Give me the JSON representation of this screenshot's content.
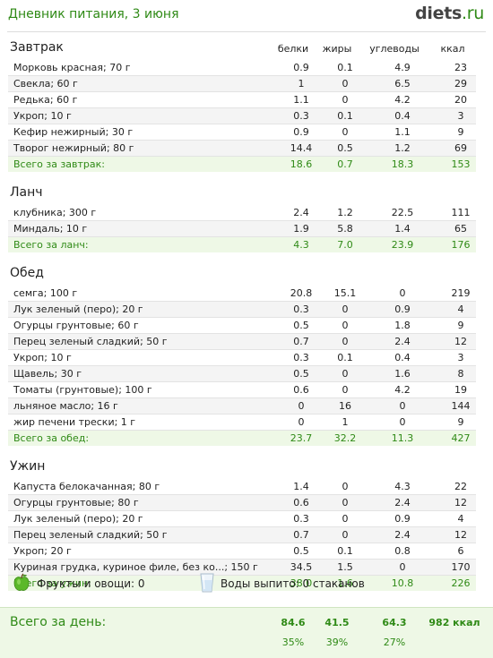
{
  "header": {
    "title": "Дневник питания, 3 июня",
    "logo_main": "diets",
    "logo_tld": ".ru"
  },
  "columns": {
    "protein": "белки",
    "fat": "жиры",
    "carbs": "углеводы",
    "kcal": "ккал"
  },
  "meals": [
    {
      "title": "Завтрак",
      "items": [
        {
          "name": "Морковь красная; 70 г",
          "protein": "0.9",
          "fat": "0.1",
          "carbs": "4.9",
          "kcal": "23"
        },
        {
          "name": "Свекла; 60 г",
          "protein": "1",
          "fat": "0",
          "carbs": "6.5",
          "kcal": "29"
        },
        {
          "name": "Редька; 60 г",
          "protein": "1.1",
          "fat": "0",
          "carbs": "4.2",
          "kcal": "20"
        },
        {
          "name": "Укроп; 10 г",
          "protein": "0.3",
          "fat": "0.1",
          "carbs": "0.4",
          "kcal": "3"
        },
        {
          "name": "Кефир нежирный; 30 г",
          "protein": "0.9",
          "fat": "0",
          "carbs": "1.1",
          "kcal": "9"
        },
        {
          "name": "Творог нежирный; 80 г",
          "protein": "14.4",
          "fat": "0.5",
          "carbs": "1.2",
          "kcal": "69"
        }
      ],
      "total": {
        "label": "Всего за завтрак:",
        "protein": "18.6",
        "fat": "0.7",
        "carbs": "18.3",
        "kcal": "153"
      }
    },
    {
      "title": "Ланч",
      "items": [
        {
          "name": "клубника; 300 г",
          "protein": "2.4",
          "fat": "1.2",
          "carbs": "22.5",
          "kcal": "111"
        },
        {
          "name": "Миндаль; 10 г",
          "protein": "1.9",
          "fat": "5.8",
          "carbs": "1.4",
          "kcal": "65"
        }
      ],
      "total": {
        "label": "Всего за ланч:",
        "protein": "4.3",
        "fat": "7.0",
        "carbs": "23.9",
        "kcal": "176"
      }
    },
    {
      "title": "Обед",
      "items": [
        {
          "name": "семга; 100 г",
          "protein": "20.8",
          "fat": "15.1",
          "carbs": "0",
          "kcal": "219"
        },
        {
          "name": "Лук зеленый (перо); 20 г",
          "protein": "0.3",
          "fat": "0",
          "carbs": "0.9",
          "kcal": "4"
        },
        {
          "name": "Огурцы грунтовые; 60 г",
          "protein": "0.5",
          "fat": "0",
          "carbs": "1.8",
          "kcal": "9"
        },
        {
          "name": "Перец зеленый сладкий; 50 г",
          "protein": "0.7",
          "fat": "0",
          "carbs": "2.4",
          "kcal": "12"
        },
        {
          "name": "Укроп; 10 г",
          "protein": "0.3",
          "fat": "0.1",
          "carbs": "0.4",
          "kcal": "3"
        },
        {
          "name": "Щавель; 30 г",
          "protein": "0.5",
          "fat": "0",
          "carbs": "1.6",
          "kcal": "8"
        },
        {
          "name": "Томаты (грунтовые); 100 г",
          "protein": "0.6",
          "fat": "0",
          "carbs": "4.2",
          "kcal": "19"
        },
        {
          "name": "льняное масло; 16 г",
          "protein": "0",
          "fat": "16",
          "carbs": "0",
          "kcal": "144"
        },
        {
          "name": "жир печени  трески; 1 г",
          "protein": "0",
          "fat": "1",
          "carbs": "0",
          "kcal": "9"
        }
      ],
      "total": {
        "label": "Всего за обед:",
        "protein": "23.7",
        "fat": "32.2",
        "carbs": "11.3",
        "kcal": "427"
      }
    },
    {
      "title": "Ужин",
      "items": [
        {
          "name": "Капуста белокачанная; 80 г",
          "protein": "1.4",
          "fat": "0",
          "carbs": "4.3",
          "kcal": "22"
        },
        {
          "name": "Огурцы грунтовые; 80 г",
          "protein": "0.6",
          "fat": "0",
          "carbs": "2.4",
          "kcal": "12"
        },
        {
          "name": "Лук зеленый (перо); 20 г",
          "protein": "0.3",
          "fat": "0",
          "carbs": "0.9",
          "kcal": "4"
        },
        {
          "name": "Перец зеленый сладкий; 50 г",
          "protein": "0.7",
          "fat": "0",
          "carbs": "2.4",
          "kcal": "12"
        },
        {
          "name": "Укроп; 20 г",
          "protein": "0.5",
          "fat": "0.1",
          "carbs": "0.8",
          "kcal": "6"
        },
        {
          "name": "Куриная грудка, куриное филе, без ко...; 150 г",
          "protein": "34.5",
          "fat": "1.5",
          "carbs": "0",
          "kcal": "170"
        }
      ],
      "total": {
        "label": "Всего за ужин:",
        "protein": "38.0",
        "fat": "1.6",
        "carbs": "10.8",
        "kcal": "226"
      }
    }
  ],
  "extras": {
    "fruit_icon": "apple-icon",
    "fruit_label": "Фрукты и овощи: 0",
    "water_icon": "water-glass-icon",
    "water_label": "Воды выпито: 0 стаканов"
  },
  "day_total": {
    "label": "Всего за день:",
    "protein": "84.6",
    "fat": "41.5",
    "carbs": "64.3",
    "kcal": "982 ккал",
    "protein_pct": "35%",
    "fat_pct": "39%",
    "carbs_pct": "27%"
  },
  "colors": {
    "accent": "#2f8a16",
    "total_bg": "#eef8e6",
    "alt_row": "#f4f4f4"
  }
}
